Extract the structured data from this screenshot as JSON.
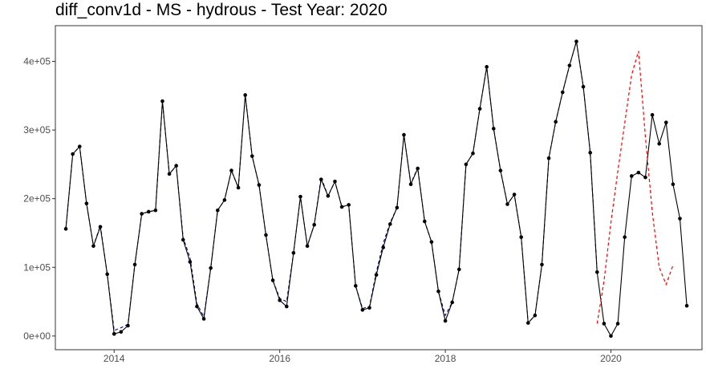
{
  "chart_data": {
    "type": "line",
    "title": "diff_conv1d - MS - hydrous - Test Year: 2020",
    "xlabel": "",
    "ylabel": "",
    "xlim": [
      2013.29,
      2021.1
    ],
    "ylim": [
      -20000,
      452000
    ],
    "x_ticks": [
      2014,
      2016,
      2018,
      2020
    ],
    "x_tick_labels": [
      "2014",
      "2016",
      "2018",
      "2020"
    ],
    "y_ticks": [
      0,
      100000,
      200000,
      300000,
      400000
    ],
    "y_tick_labels": [
      "0e+00",
      "1e+05",
      "2e+05",
      "3e+05",
      "4e+05"
    ],
    "grid": false,
    "legend": "none",
    "colors": {
      "actual": "#000000",
      "fitted": "#00008b",
      "forecast": "#ff0000"
    },
    "series": [
      {
        "role": "actual",
        "style": "solid line with points",
        "start": "2013-06",
        "frequency": "monthly",
        "values": [
          156000,
          265000,
          276000,
          193000,
          131000,
          159000,
          90000,
          3000,
          6000,
          15000,
          104000,
          178000,
          181000,
          183000,
          342000,
          236000,
          248000,
          140000,
          108000,
          43000,
          25000,
          99000,
          183000,
          198000,
          241000,
          216000,
          351000,
          262000,
          220000,
          147000,
          81000,
          52000,
          43000,
          121000,
          203000,
          131000,
          162000,
          228000,
          204000,
          225000,
          188000,
          191000,
          73000,
          38000,
          41000,
          89000,
          129000,
          163000,
          187000,
          293000,
          221000,
          244000,
          167000,
          137000,
          65000,
          22000,
          49000,
          97000,
          250000,
          266000,
          331000,
          392000,
          302000,
          241000,
          192000,
          206000,
          144000,
          19000,
          30000,
          104000,
          259000,
          312000,
          355000,
          394000,
          429000,
          363000,
          267000,
          93000,
          18000,
          0,
          18000,
          144000,
          233000,
          238000,
          231000,
          322000,
          280000,
          311000,
          221000,
          171000,
          44000
        ]
      },
      {
        "role": "fitted",
        "style": "dashed line",
        "start": "2013-06",
        "frequency": "monthly",
        "values": [
          156000,
          265000,
          276000,
          193000,
          131000,
          161000,
          90000,
          8000,
          12000,
          17000,
          104000,
          178000,
          181000,
          183000,
          342000,
          236000,
          248000,
          143000,
          114000,
          47000,
          28000,
          99000,
          183000,
          198000,
          241000,
          216000,
          351000,
          262000,
          220000,
          147000,
          81000,
          55000,
          50000,
          121000,
          203000,
          131000,
          162000,
          231000,
          204000,
          225000,
          188000,
          191000,
          73000,
          40000,
          43000,
          93000,
          135000,
          165000,
          187000,
          293000,
          222000,
          245000,
          167000,
          137000,
          65000,
          30000,
          49000,
          97000,
          250000,
          266000,
          331000,
          392000,
          302000,
          241000,
          192000,
          206000,
          144000,
          19000,
          30000,
          104000,
          259000,
          312000,
          355000,
          394000,
          429000,
          363000,
          267000,
          93000
        ]
      },
      {
        "role": "forecast",
        "style": "dashed line",
        "start": "2019-11",
        "frequency": "monthly",
        "values": [
          18000,
          80000,
          165000,
          240000,
          310000,
          380000,
          415000,
          290000,
          180000,
          100000,
          75000,
          103000
        ]
      }
    ]
  }
}
